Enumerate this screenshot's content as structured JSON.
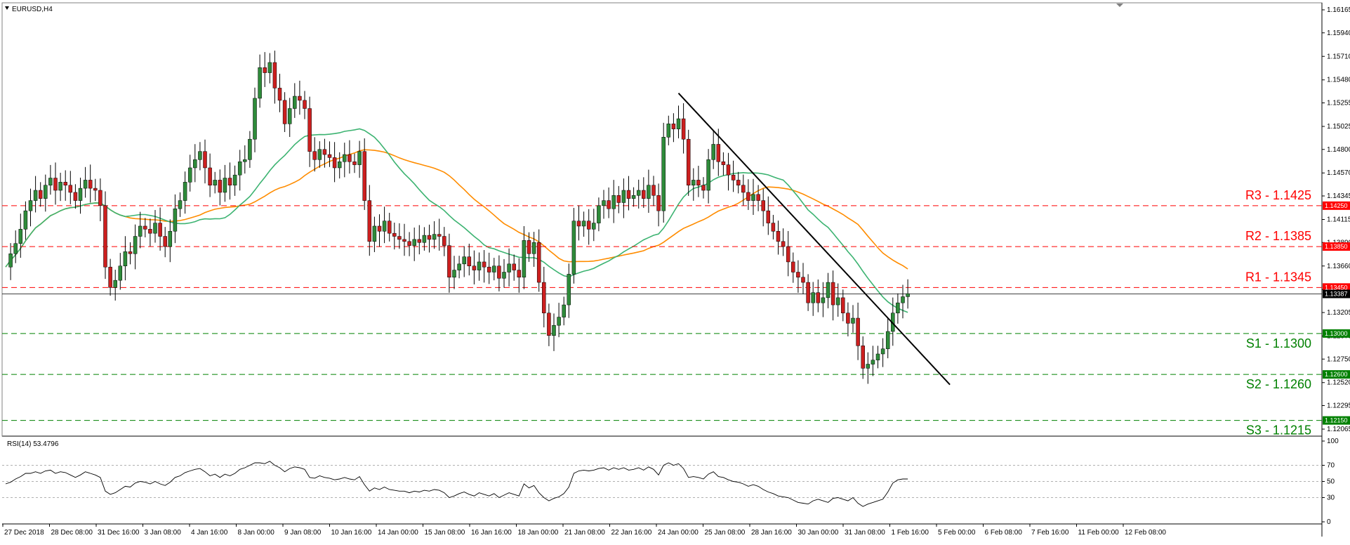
{
  "chart_data": [
    {
      "type": "candlestick",
      "symbol": "EURUSD,H4",
      "colors": {
        "bull": "#2e8b3a",
        "bear": "#cc1f1f",
        "wick": "#000000",
        "ma_fast": "#3cb371",
        "ma_slow": "#ff8c00",
        "trendline": "#000000",
        "resistance": "#ff0000",
        "support": "#008000",
        "current": "#000000"
      },
      "y_ticks": [
        "1.16165",
        "1.15940",
        "1.15710",
        "1.15480",
        "1.15255",
        "1.15025",
        "1.14800",
        "1.14570",
        "1.14345",
        "1.14115",
        "1.13890",
        "1.13660",
        "1.13430",
        "1.13205",
        "1.12975",
        "1.12750",
        "1.12520",
        "1.12295",
        "1.12065"
      ],
      "ylim": [
        1.12065,
        1.16165
      ],
      "x_labels": [
        "27 Dec 2018",
        "28 Dec 08:00",
        "31 Dec 16:00",
        "3 Jan 08:00",
        "4 Jan 16:00",
        "8 Jan 00:00",
        "9 Jan 08:00",
        "10 Jan 16:00",
        "14 Jan 00:00",
        "15 Jan 08:00",
        "16 Jan 16:00",
        "18 Jan 00:00",
        "21 Jan 08:00",
        "22 Jan 16:00",
        "24 Jan 00:00",
        "25 Jan 08:00",
        "28 Jan 16:00",
        "30 Jan 00:00",
        "31 Jan 08:00",
        "1 Feb 16:00",
        "5 Feb 00:00",
        "6 Feb 08:00",
        "7 Feb 16:00",
        "11 Feb 00:00",
        "12 Feb 08:00"
      ],
      "levels": [
        {
          "name": "R3 - 1.1425",
          "tag": "1.14250",
          "value": 1.1425,
          "kind": "resistance"
        },
        {
          "name": "R2 - 1.1385",
          "tag": "1.13850",
          "value": 1.1385,
          "kind": "resistance"
        },
        {
          "name": "R1 - 1.1345",
          "tag": "1.13450",
          "value": 1.1345,
          "kind": "resistance"
        },
        {
          "name": "S1 - 1.1300",
          "tag": "1.13000",
          "value": 1.13,
          "kind": "support"
        },
        {
          "name": "S2 - 1.1260",
          "tag": "1.12600",
          "value": 1.126,
          "kind": "support"
        },
        {
          "name": "S3 - 1.1215",
          "tag": "1.12150",
          "value": 1.1215,
          "kind": "support"
        }
      ],
      "current_price": {
        "tag": "1.13387",
        "value": 1.13387
      },
      "closes": [
        1.1365,
        1.1378,
        1.1388,
        1.1402,
        1.142,
        1.143,
        1.144,
        1.1432,
        1.1445,
        1.1452,
        1.144,
        1.1448,
        1.1445,
        1.1438,
        1.143,
        1.1442,
        1.145,
        1.1442,
        1.144,
        1.1425,
        1.1365,
        1.1345,
        1.1352,
        1.1366,
        1.138,
        1.1378,
        1.1395,
        1.1405,
        1.1402,
        1.1398,
        1.1408,
        1.1395,
        1.1385,
        1.14,
        1.1422,
        1.143,
        1.1448,
        1.1462,
        1.147,
        1.1478,
        1.1462,
        1.1445,
        1.145,
        1.1438,
        1.1452,
        1.1445,
        1.1455,
        1.1468,
        1.147,
        1.149,
        1.153,
        1.156,
        1.1555,
        1.1565,
        1.154,
        1.1528,
        1.1505,
        1.152,
        1.1532,
        1.1528,
        1.152,
        1.1478,
        1.147,
        1.148,
        1.1475,
        1.1472,
        1.1462,
        1.1468,
        1.1475,
        1.1468,
        1.1465,
        1.1478,
        1.143,
        1.139,
        1.1405,
        1.14,
        1.141,
        1.1398,
        1.1395,
        1.1392,
        1.139,
        1.1386,
        1.1392,
        1.1389,
        1.1396,
        1.1392,
        1.1397,
        1.1395,
        1.1386,
        1.1355,
        1.1362,
        1.1368,
        1.1375,
        1.1366,
        1.1362,
        1.137,
        1.1365,
        1.136,
        1.1366,
        1.1354,
        1.136,
        1.1368,
        1.1362,
        1.1355,
        1.1391,
        1.1378,
        1.1389,
        1.135,
        1.132,
        1.1298,
        1.1308,
        1.1316,
        1.1328,
        1.1358,
        1.141,
        1.1405,
        1.141,
        1.1402,
        1.1408,
        1.1425,
        1.143,
        1.1422,
        1.1435,
        1.1428,
        1.144,
        1.1432,
        1.1435,
        1.144,
        1.1432,
        1.1445,
        1.1435,
        1.142,
        1.1492,
        1.1505,
        1.15,
        1.151,
        1.149,
        1.1445,
        1.145,
        1.1445,
        1.144,
        1.147,
        1.1485,
        1.1468,
        1.1465,
        1.1455,
        1.145,
        1.1445,
        1.1438,
        1.143,
        1.1436,
        1.143,
        1.142,
        1.1408,
        1.14,
        1.139,
        1.1385,
        1.137,
        1.136,
        1.1355,
        1.135,
        1.133,
        1.134,
        1.133,
        1.1335,
        1.135,
        1.1328,
        1.1335,
        1.132,
        1.131,
        1.1315,
        1.1288,
        1.1266,
        1.127,
        1.1274,
        1.128,
        1.1285,
        1.1302,
        1.132,
        1.133,
        1.1336,
        1.1339
      ]
    },
    {
      "type": "line",
      "label": "RSI(14) 53.4796",
      "y_ticks": [
        "100",
        "70",
        "50",
        "30",
        "0"
      ],
      "ylim": [
        0,
        100
      ],
      "x_labels_ref": "same as price",
      "values": [
        47,
        49,
        53,
        56,
        60,
        60,
        62,
        60,
        63,
        64,
        60,
        62,
        61,
        58,
        55,
        58,
        62,
        60,
        58,
        55,
        38,
        34,
        36,
        40,
        44,
        43,
        48,
        50,
        49,
        47,
        50,
        47,
        45,
        49,
        55,
        57,
        61,
        63,
        65,
        66,
        62,
        57,
        59,
        55,
        59,
        57,
        60,
        65,
        67,
        70,
        73,
        73,
        72,
        75,
        70,
        67,
        62,
        66,
        68,
        67,
        65,
        55,
        54,
        57,
        55,
        54,
        52,
        53,
        55,
        53,
        52,
        56,
        46,
        38,
        42,
        40,
        43,
        40,
        39,
        38,
        38,
        36,
        38,
        37,
        39,
        38,
        40,
        39,
        36,
        30,
        32,
        35,
        37,
        34,
        32,
        36,
        34,
        32,
        35,
        30,
        33,
        36,
        34,
        32,
        47,
        42,
        45,
        36,
        30,
        26,
        29,
        31,
        35,
        43,
        60,
        63,
        64,
        63,
        64,
        66,
        67,
        64,
        67,
        65,
        67,
        64,
        65,
        67,
        64,
        68,
        65,
        58,
        70,
        73,
        70,
        72,
        66,
        55,
        56,
        55,
        53,
        59,
        62,
        56,
        55,
        52,
        50,
        49,
        47,
        44,
        46,
        44,
        40,
        37,
        35,
        32,
        31,
        30,
        27,
        24,
        23,
        22,
        26,
        28,
        26,
        24,
        29,
        30,
        28,
        26,
        30,
        23,
        19,
        22,
        24,
        26,
        28,
        37,
        48,
        52,
        53,
        53
      ]
    }
  ]
}
